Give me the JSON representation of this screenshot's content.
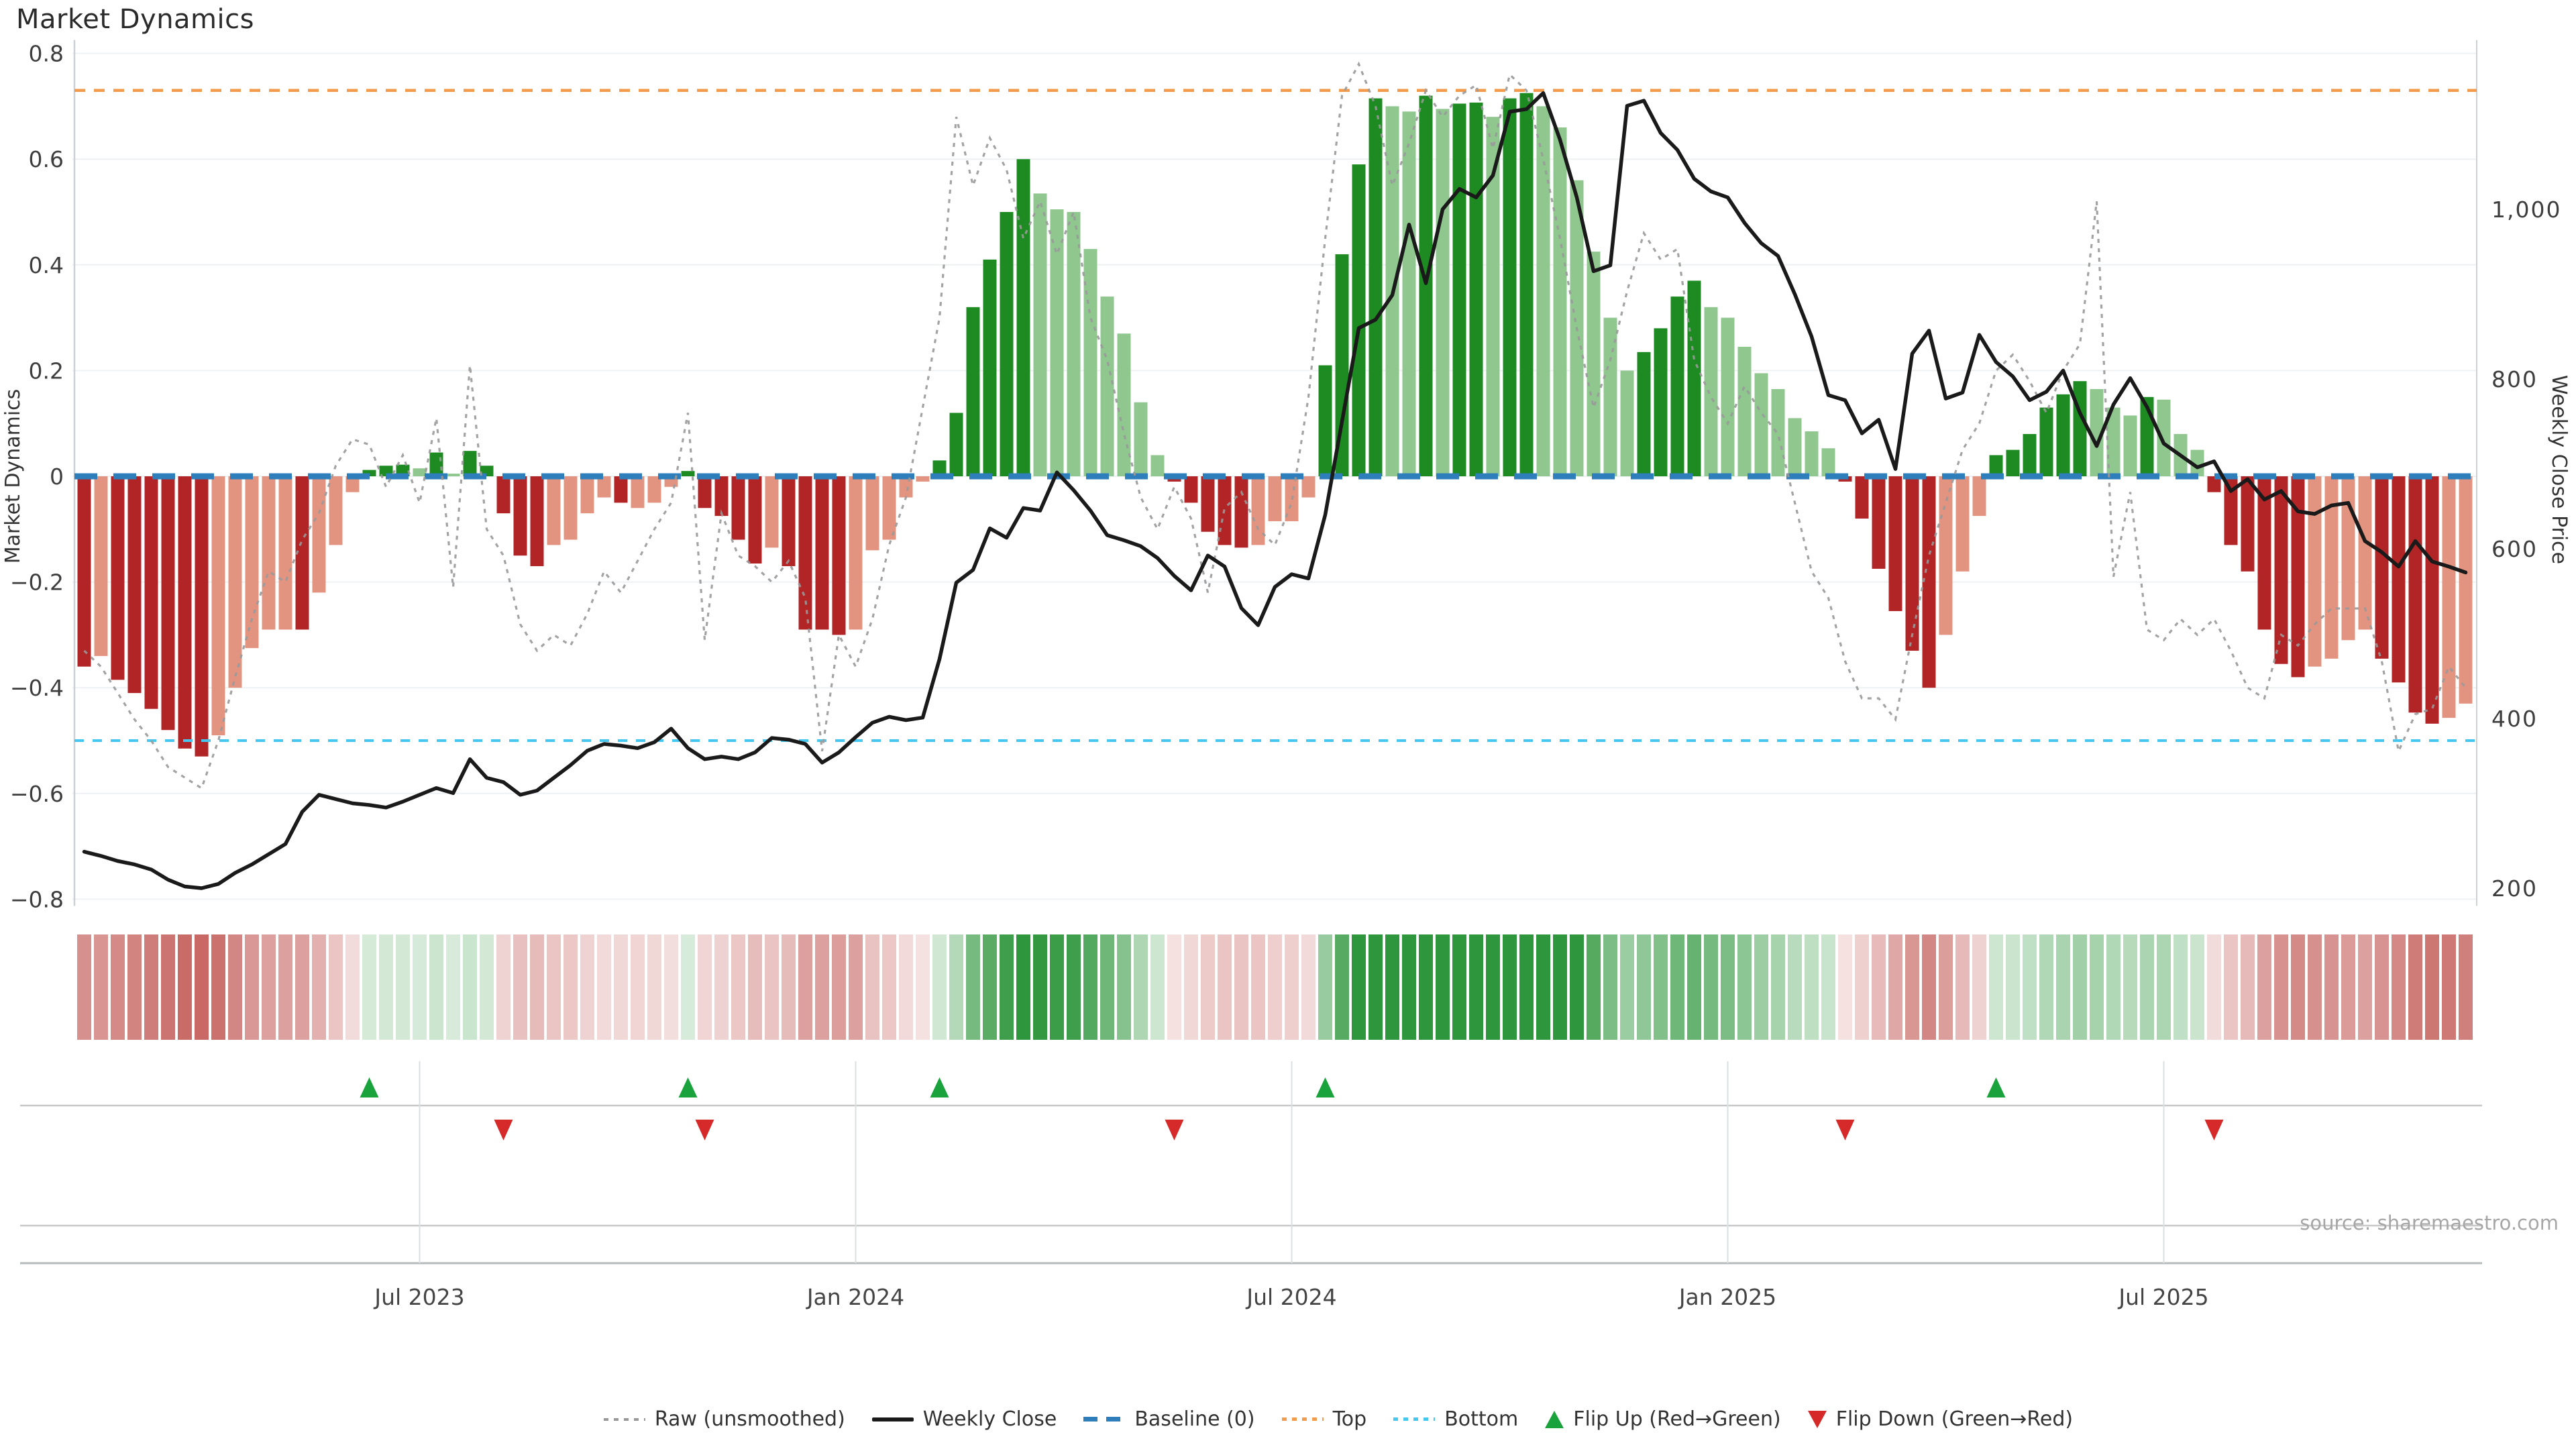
{
  "title": "Market Dynamics",
  "source": "source: sharemaestro.com",
  "axes": {
    "left_label": "Market Dynamics",
    "right_label": "Weekly Close Price",
    "left_ticks": [
      {
        "label": "0.8",
        "value": 0.8
      },
      {
        "label": "0.6",
        "value": 0.6
      },
      {
        "label": "0.4",
        "value": 0.4
      },
      {
        "label": "0.2",
        "value": 0.2
      },
      {
        "label": "0",
        "value": 0
      },
      {
        "label": "−0.2",
        "value": -0.2
      },
      {
        "label": "−0.4",
        "value": -0.4
      },
      {
        "label": "−0.6",
        "value": -0.6
      },
      {
        "label": "−0.8",
        "value": -0.8
      }
    ],
    "right_ticks": [
      {
        "label": "1,000",
        "value": 1000
      },
      {
        "label": "800",
        "value": 800
      },
      {
        "label": "600",
        "value": 600
      },
      {
        "label": "400",
        "value": 400
      },
      {
        "label": "200",
        "value": 200
      }
    ],
    "x_ticks": [
      {
        "label": "Jul 2023",
        "week": 20
      },
      {
        "label": "Jan 2024",
        "week": 46
      },
      {
        "label": "Jul 2024",
        "week": 72
      },
      {
        "label": "Jan 2025",
        "week": 98
      },
      {
        "label": "Jul 2025",
        "week": 124
      }
    ]
  },
  "legend": {
    "items": [
      {
        "id": "raw",
        "label": "Raw (unsmoothed)"
      },
      {
        "id": "weekly-close",
        "label": "Weekly Close"
      },
      {
        "id": "baseline",
        "label": "Baseline (0)"
      },
      {
        "id": "top",
        "label": "Top"
      },
      {
        "id": "bottom",
        "label": "Bottom"
      },
      {
        "id": "flip-up",
        "label": "Flip Up (Red→Green)"
      },
      {
        "id": "flip-down",
        "label": "Flip Down (Green→Red)"
      }
    ]
  },
  "colors": {
    "bar_dark_red": "#b22527",
    "bar_light_red": "#e39480",
    "bar_dark_green": "#1e8b22",
    "bar_light_green": "#8fc78f",
    "baseline": "#2e7ebc",
    "top": "#f29b4d",
    "bottom": "#45c7ef",
    "raw": "#999999",
    "price": "#1a1a1a",
    "flip_up": "#1aa33c",
    "flip_down": "#d62a2a",
    "grid": "#eef1f4",
    "spine": "#ccd1d5",
    "panel_line": "#c8c8c8",
    "panel_axis": "#b5babd",
    "date_grid": "#dcdfe2",
    "tick_text": "#3d3d3d",
    "x_tick_text": "#444444",
    "heat_red": [
      198,
      100,
      96
    ],
    "heat_green": [
      46,
      150,
      60
    ]
  },
  "chart_data": {
    "type": "combo",
    "frequency": "weekly",
    "n_weeks": 143,
    "title": "Market Dynamics",
    "left_axis": {
      "label": "Market Dynamics",
      "min": -0.8,
      "max": 0.8,
      "grid": true
    },
    "right_axis": {
      "label": "Weekly Close Price",
      "ticks": [
        200,
        400,
        600,
        800,
        1000
      ]
    },
    "guides": {
      "baseline": 0,
      "top": 0.73,
      "bottom": -0.5
    },
    "bars": {
      "name": "Market Dynamics (smoothed)",
      "values": [
        -0.36,
        -0.34,
        -0.385,
        -0.41,
        -0.44,
        -0.48,
        -0.515,
        -0.53,
        -0.49,
        -0.4,
        -0.325,
        -0.29,
        -0.29,
        -0.29,
        -0.22,
        -0.13,
        -0.03,
        0.012,
        0.02,
        0.022,
        0.015,
        0.045,
        0.005,
        0.048,
        0.02,
        -0.07,
        -0.15,
        -0.17,
        -0.13,
        -0.12,
        -0.07,
        -0.04,
        -0.05,
        -0.06,
        -0.05,
        -0.02,
        0.01,
        -0.06,
        -0.075,
        -0.12,
        -0.165,
        -0.135,
        -0.17,
        -0.29,
        -0.29,
        -0.3,
        -0.29,
        -0.14,
        -0.12,
        -0.04,
        -0.01,
        0.03,
        0.12,
        0.32,
        0.41,
        0.5,
        0.6,
        0.535,
        0.505,
        0.5,
        0.43,
        0.34,
        0.27,
        0.14,
        0.04,
        -0.01,
        -0.05,
        -0.105,
        -0.13,
        -0.135,
        -0.13,
        -0.085,
        -0.085,
        -0.04,
        0.21,
        0.42,
        0.59,
        0.715,
        0.7,
        0.69,
        0.72,
        0.695,
        0.705,
        0.707,
        0.68,
        0.715,
        0.725,
        0.7,
        0.66,
        0.56,
        0.425,
        0.3,
        0.2,
        0.235,
        0.28,
        0.34,
        0.37,
        0.32,
        0.3,
        0.245,
        0.195,
        0.165,
        0.11,
        0.085,
        0.053,
        -0.01,
        -0.08,
        -0.175,
        -0.255,
        -0.33,
        -0.4,
        -0.3,
        -0.18,
        -0.075,
        0.04,
        0.05,
        0.08,
        0.13,
        0.155,
        0.18,
        0.165,
        0.13,
        0.115,
        0.15,
        0.145,
        0.08,
        0.05,
        -0.03,
        -0.13,
        -0.18,
        -0.29,
        -0.355,
        -0.38,
        -0.36,
        -0.345,
        -0.31,
        -0.29,
        -0.345,
        -0.39,
        -0.447,
        -0.468,
        -0.457,
        -0.43
      ],
      "tones": [
        "d",
        "l",
        "d",
        "d",
        "d",
        "d",
        "d",
        "d",
        "l",
        "l",
        "l",
        "l",
        "l",
        "d",
        "l",
        "l",
        "l",
        "d",
        "d",
        "d",
        "l",
        "d",
        "l",
        "d",
        "d",
        "d",
        "d",
        "d",
        "l",
        "l",
        "l",
        "l",
        "d",
        "l",
        "l",
        "l",
        "d",
        "d",
        "d",
        "d",
        "d",
        "l",
        "d",
        "d",
        "d",
        "d",
        "l",
        "l",
        "l",
        "l",
        "l",
        "d",
        "d",
        "d",
        "d",
        "d",
        "d",
        "l",
        "l",
        "l",
        "l",
        "l",
        "l",
        "l",
        "l",
        "d",
        "d",
        "d",
        "d",
        "d",
        "l",
        "l",
        "l",
        "l",
        "d",
        "d",
        "d",
        "d",
        "l",
        "l",
        "d",
        "l",
        "d",
        "d",
        "l",
        "d",
        "d",
        "l",
        "l",
        "l",
        "l",
        "l",
        "l",
        "d",
        "d",
        "d",
        "d",
        "l",
        "l",
        "l",
        "l",
        "l",
        "l",
        "l",
        "l",
        "d",
        "d",
        "d",
        "d",
        "d",
        "d",
        "l",
        "l",
        "l",
        "d",
        "d",
        "d",
        "d",
        "d",
        "d",
        "l",
        "l",
        "l",
        "d",
        "l",
        "l",
        "l",
        "d",
        "d",
        "d",
        "d",
        "d",
        "d",
        "l",
        "l",
        "l",
        "l",
        "d",
        "d",
        "d",
        "d",
        "l",
        "l"
      ]
    },
    "raw_line": {
      "name": "Raw (unsmoothed)",
      "values": [
        -0.33,
        -0.36,
        -0.41,
        -0.46,
        -0.5,
        -0.55,
        -0.57,
        -0.59,
        -0.5,
        -0.38,
        -0.27,
        -0.18,
        -0.2,
        -0.12,
        -0.07,
        0.02,
        0.07,
        0.06,
        -0.02,
        0.04,
        -0.05,
        0.11,
        -0.21,
        0.21,
        -0.1,
        -0.15,
        -0.28,
        -0.33,
        -0.3,
        -0.32,
        -0.26,
        -0.18,
        -0.22,
        -0.16,
        -0.1,
        -0.05,
        0.12,
        -0.31,
        -0.07,
        -0.15,
        -0.17,
        -0.2,
        -0.16,
        -0.23,
        -0.52,
        -0.3,
        -0.36,
        -0.27,
        -0.13,
        -0.04,
        0.13,
        0.3,
        0.68,
        0.55,
        0.64,
        0.58,
        0.45,
        0.52,
        0.42,
        0.5,
        0.3,
        0.22,
        0.08,
        -0.04,
        -0.1,
        -0.02,
        -0.08,
        -0.22,
        -0.06,
        -0.03,
        -0.1,
        -0.13,
        -0.05,
        0.15,
        0.45,
        0.72,
        0.78,
        0.7,
        0.55,
        0.63,
        0.73,
        0.68,
        0.72,
        0.74,
        0.62,
        0.76,
        0.73,
        0.6,
        0.45,
        0.28,
        0.13,
        0.22,
        0.35,
        0.46,
        0.41,
        0.43,
        0.22,
        0.15,
        0.1,
        0.17,
        0.12,
        0.08,
        -0.05,
        -0.18,
        -0.23,
        -0.35,
        -0.42,
        -0.42,
        -0.46,
        -0.3,
        -0.15,
        -0.05,
        0.05,
        0.1,
        0.2,
        0.23,
        0.18,
        0.12,
        0.2,
        0.25,
        0.52,
        -0.19,
        -0.03,
        -0.29,
        -0.31,
        -0.27,
        -0.3,
        -0.27,
        -0.33,
        -0.4,
        -0.42,
        -0.3,
        -0.32,
        -0.28,
        -0.25,
        -0.25,
        -0.25,
        -0.35,
        -0.52,
        -0.45,
        -0.44,
        -0.36,
        -0.4
      ]
    },
    "price_line": {
      "name": "Weekly Close",
      "values": [
        243,
        238,
        232,
        228,
        222,
        210,
        202,
        200,
        205,
        218,
        228,
        240,
        252,
        290,
        310,
        305,
        300,
        298,
        295,
        302,
        310,
        318,
        312,
        352,
        330,
        325,
        310,
        315,
        330,
        345,
        362,
        370,
        368,
        365,
        372,
        388,
        365,
        352,
        355,
        352,
        360,
        377,
        375,
        370,
        348,
        360,
        378,
        395,
        402,
        398,
        401,
        470,
        560,
        575,
        624,
        613,
        648,
        645,
        690,
        669,
        645,
        616,
        610,
        603,
        589,
        568,
        551,
        592,
        579,
        530,
        510,
        555,
        570,
        565,
        640,
        750,
        860,
        870,
        899,
        982,
        913,
        1000,
        1024,
        1014,
        1040,
        1115,
        1118,
        1137,
        1082,
        1014,
        927,
        934,
        1122,
        1128,
        1090,
        1070,
        1036,
        1021,
        1014,
        984,
        960,
        945,
        900,
        850,
        781,
        775,
        736,
        752,
        694,
        830,
        857,
        777,
        784,
        852,
        820,
        803,
        775,
        785,
        810,
        760,
        721,
        770,
        801,
        767,
        724,
        710,
        696,
        703,
        668,
        682,
        658,
        668,
        644,
        641,
        651,
        654,
        609,
        596,
        579,
        609,
        585,
        579,
        572
      ]
    },
    "flip_up_weeks": [
      17,
      36,
      51,
      74,
      114
    ],
    "flip_down_weeks": [
      25,
      37,
      65,
      105,
      127
    ]
  }
}
